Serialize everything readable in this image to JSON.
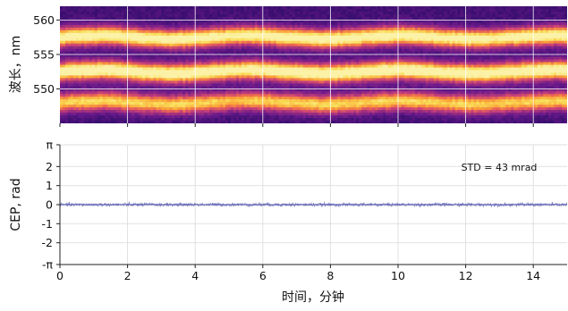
{
  "chart_data": [
    {
      "type": "heatmap",
      "panel": "spectrogram",
      "ylabel": "波长，nm",
      "xlim": [
        0,
        15
      ],
      "ylim": [
        545,
        562
      ],
      "yticks": [
        550,
        555,
        560
      ],
      "grid": true,
      "colormap": [
        "#1c0c4f",
        "#3b0f70",
        "#6b1a8c",
        "#9c2e7f",
        "#c9417a",
        "#ee6a4f",
        "#fba238",
        "#f9dd57",
        "#fbf2a8"
      ],
      "bands": [
        {
          "center_nm": 557.5,
          "peak": 0.9
        },
        {
          "center_nm": 552.5,
          "peak": 0.95
        },
        {
          "center_nm": 548.0,
          "peak": 0.7
        }
      ],
      "background_level": 0.15
    },
    {
      "type": "line",
      "panel": "cep",
      "xlabel": "时间，分钟",
      "ylabel": "CEP, rad",
      "xlim": [
        0,
        15
      ],
      "xticks": [
        0,
        2,
        4,
        6,
        8,
        10,
        12,
        14
      ],
      "ylim": [
        -3.14159,
        3.14159
      ],
      "ytick_values": [
        -3.14159,
        -2,
        -1,
        0,
        1,
        2,
        3.14159
      ],
      "ytick_labels": [
        "-π",
        "-2",
        "-1",
        "0",
        "1",
        "2",
        "π"
      ],
      "grid": true,
      "series": [
        {
          "color": "#5a5db0",
          "mean": 0,
          "std_rad": 0.043
        }
      ],
      "annotation": "STD = 43 mrad"
    }
  ]
}
